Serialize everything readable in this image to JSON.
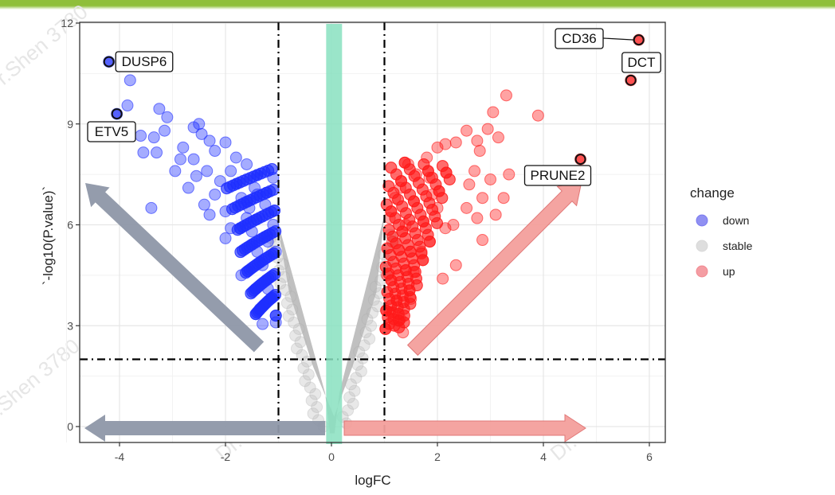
{
  "header_bar": {
    "color": "#8fbf3a"
  },
  "watermark_text": "Dr.Shen 3780",
  "chart_data": {
    "type": "scatter",
    "title": "",
    "xlabel": "logFC",
    "ylabel": "`-log10(P.value)`",
    "xlim": [
      -4.8,
      6.3
    ],
    "ylim": [
      -0.55,
      12
    ],
    "xticks": [
      -4,
      -2,
      0,
      2,
      4,
      6
    ],
    "xtick_labels": [
      "-4",
      "-2",
      "0",
      "2",
      "4",
      "6"
    ],
    "yticks": [
      0,
      3,
      6,
      9,
      12
    ],
    "ytick_labels": [
      "0",
      "3",
      "6",
      "9",
      "12"
    ],
    "grid": true,
    "thresholds": {
      "logFC": [
        -1,
        1
      ],
      "neg_log10_p": 2
    },
    "legend": {
      "title": "change",
      "position": "right",
      "entries": [
        {
          "label": "down",
          "color": "#6b6bee"
        },
        {
          "label": "stable",
          "color": "#d3d3d3"
        },
        {
          "label": "up",
          "color": "#f07c84"
        }
      ]
    },
    "series": [
      {
        "name": "down",
        "color": "#1f2fff",
        "points": [
          [
            -4.2,
            10.85
          ],
          [
            -3.8,
            10.3
          ],
          [
            -4.05,
            9.3
          ],
          [
            -3.85,
            9.55
          ],
          [
            -3.6,
            8.65
          ],
          [
            -3.35,
            8.6
          ],
          [
            -3.25,
            9.45
          ],
          [
            -3.1,
            9.2
          ],
          [
            -3.15,
            8.8
          ],
          [
            -2.8,
            8.3
          ],
          [
            -2.6,
            8.9
          ],
          [
            -2.5,
            9.0
          ],
          [
            -2.45,
            8.7
          ],
          [
            -2.3,
            8.5
          ],
          [
            -2.2,
            8.2
          ],
          [
            -2.6,
            7.95
          ],
          [
            -2.85,
            7.95
          ],
          [
            -2.95,
            7.6
          ],
          [
            -3.3,
            8.15
          ],
          [
            -3.55,
            8.15
          ],
          [
            -2.55,
            7.45
          ],
          [
            -2.7,
            7.1
          ],
          [
            -2.0,
            8.45
          ],
          [
            -1.8,
            8.0
          ],
          [
            -1.6,
            7.8
          ],
          [
            -2.35,
            7.6
          ],
          [
            -2.1,
            7.3
          ],
          [
            -1.9,
            7.6
          ],
          [
            -2.2,
            6.9
          ],
          [
            -2.4,
            6.6
          ],
          [
            -2.3,
            6.3
          ],
          [
            -2.0,
            6.4
          ],
          [
            -1.7,
            6.8
          ],
          [
            -1.6,
            6.2
          ],
          [
            -1.9,
            5.9
          ],
          [
            -3.4,
            6.5
          ],
          [
            -2.0,
            5.6
          ],
          [
            -1.7,
            4.5
          ],
          [
            -1.4,
            5.2
          ],
          [
            -1.3,
            4.8
          ],
          [
            -1.2,
            4.1
          ],
          [
            -1.35,
            3.5
          ],
          [
            -1.3,
            3.05
          ],
          [
            -1.05,
            3.1
          ],
          [
            -1.15,
            3.8
          ],
          [
            -1.5,
            5.8
          ],
          [
            -1.25,
            6.6
          ],
          [
            -1.45,
            7.1
          ],
          [
            -1.1,
            7.4
          ],
          [
            -1.2,
            5.5
          ],
          [
            -1.55,
            6.5
          ],
          [
            -1.1,
            6.0
          ],
          [
            -1.4,
            6.9
          ],
          [
            -1.05,
            5.2
          ]
        ],
        "labeled": [
          {
            "gene": "DUSP6",
            "x": -4.2,
            "y": 10.85
          },
          {
            "gene": "ETV5",
            "x": -4.05,
            "y": 9.3
          }
        ]
      },
      {
        "name": "stable",
        "color": "#bdbdbd"
      },
      {
        "name": "up",
        "color": "#ff1a1a",
        "points": [
          [
            5.8,
            11.5
          ],
          [
            5.65,
            10.3
          ],
          [
            4.7,
            7.95
          ],
          [
            3.9,
            9.25
          ],
          [
            3.3,
            9.85
          ],
          [
            3.05,
            9.35
          ],
          [
            2.95,
            8.85
          ],
          [
            3.15,
            8.6
          ],
          [
            2.55,
            8.8
          ],
          [
            2.75,
            8.5
          ],
          [
            2.8,
            8.2
          ],
          [
            2.35,
            8.45
          ],
          [
            2.15,
            8.4
          ],
          [
            2.0,
            8.3
          ],
          [
            1.8,
            8.0
          ],
          [
            3.35,
            7.5
          ],
          [
            3.0,
            7.35
          ],
          [
            2.7,
            7.6
          ],
          [
            2.6,
            7.2
          ],
          [
            2.85,
            6.8
          ],
          [
            2.55,
            6.5
          ],
          [
            2.3,
            6.0
          ],
          [
            2.15,
            5.9
          ],
          [
            2.0,
            6.5
          ],
          [
            1.9,
            6.9
          ],
          [
            3.1,
            6.3
          ],
          [
            3.25,
            6.8
          ],
          [
            2.75,
            6.2
          ],
          [
            2.85,
            5.55
          ],
          [
            2.35,
            4.8
          ],
          [
            2.1,
            4.4
          ],
          [
            1.5,
            3.8
          ],
          [
            1.3,
            3.2
          ],
          [
            1.35,
            2.8
          ],
          [
            1.1,
            3.4
          ],
          [
            1.05,
            4.5
          ],
          [
            1.6,
            7.5
          ],
          [
            1.2,
            6.8
          ],
          [
            1.4,
            6.0
          ],
          [
            1.15,
            5.5
          ],
          [
            1.7,
            5.2
          ],
          [
            1.55,
            4.6
          ],
          [
            1.3,
            7.1
          ],
          [
            1.85,
            7.4
          ],
          [
            1.1,
            6.2
          ],
          [
            1.45,
            7.8
          ]
        ],
        "labeled": [
          {
            "gene": "CD36",
            "x": 5.8,
            "y": 11.5
          },
          {
            "gene": "DCT",
            "x": 5.65,
            "y": 10.3
          },
          {
            "gene": "PRUNE2",
            "x": 4.7,
            "y": 7.95
          }
        ]
      }
    ],
    "annotations": {
      "arrows": [
        {
          "name": "arrow-upper-left",
          "color": "#8e97a8"
        },
        {
          "name": "arrow-left",
          "color": "#8e97a8"
        },
        {
          "name": "arrow-upper-right",
          "color": "#f4a09c"
        },
        {
          "name": "arrow-right",
          "color": "#f4a09c"
        }
      ],
      "center_band": {
        "color": "#88e0c0",
        "x_range": [
          -0.1,
          0.2
        ]
      }
    }
  }
}
